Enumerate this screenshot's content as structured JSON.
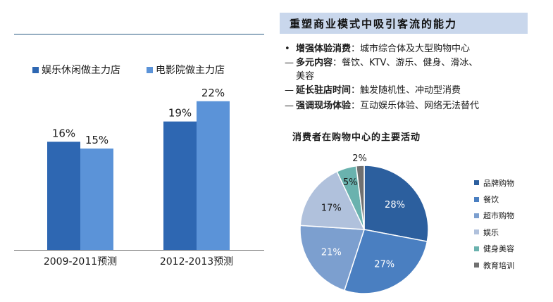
{
  "colors": {
    "bar_primary": "#2e67b2",
    "bar_secondary": "#5b93d8",
    "title_bg": "#c9d7ec",
    "rule": "#2a5a82"
  },
  "bar_legend": [
    {
      "label": "娱乐休闲做主力店",
      "color": "#2e67b2"
    },
    {
      "label": "电影院做主力店",
      "color": "#5b93d8"
    }
  ],
  "panel": {
    "title": "重塑商业模式中吸引客流的能力",
    "bullets": [
      {
        "marker": "•",
        "bold": "增强体验消费",
        "text": "：城市综合体及大型购物中心"
      },
      {
        "marker": "—",
        "bold": "多元内容",
        "text": "：餐饮、KTV、游乐、健身、滑冰、"
      },
      {
        "marker": "",
        "bold": "",
        "text": "美容"
      },
      {
        "marker": "—",
        "bold": "延长驻店时间",
        "text": "：触发随机性、冲动型消费"
      },
      {
        "marker": "—",
        "bold": "强调现场体验",
        "text": "：互动娱乐体验、网络无法替代"
      }
    ]
  },
  "chart_data": [
    {
      "type": "bar",
      "categories": [
        "2009-2011预测",
        "2012-2013预测"
      ],
      "series": [
        {
          "name": "娱乐休闲做主力店",
          "values": [
            16,
            19
          ]
        },
        {
          "name": "电影院做主力店",
          "values": [
            15,
            22
          ]
        }
      ],
      "value_suffix": "%",
      "ylim": [
        0,
        25
      ],
      "grid": false,
      "legend": "top-left"
    },
    {
      "type": "pie",
      "title": "消费者在购物中心的主要活动",
      "labels": [
        "品牌购物",
        "餐饮",
        "超市购物",
        "娱乐",
        "健身美容",
        "教育培训"
      ],
      "values": [
        28,
        27,
        21,
        17,
        5,
        2
      ],
      "colors": [
        "#2c5f9e",
        "#4a7fc1",
        "#7c9fcf",
        "#b0c1dc",
        "#6ab2ae",
        "#707070"
      ],
      "value_suffix": "%",
      "legend": "right"
    }
  ]
}
